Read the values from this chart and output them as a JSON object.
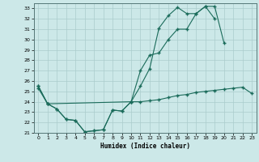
{
  "xlabel": "Humidex (Indice chaleur)",
  "bg_color": "#cce8e8",
  "grid_color": "#aacccc",
  "line_color": "#1a6b5a",
  "xlim": [
    -0.5,
    23.5
  ],
  "ylim": [
    21,
    33.5
  ],
  "xticks": [
    0,
    1,
    2,
    3,
    4,
    5,
    6,
    7,
    8,
    9,
    10,
    11,
    12,
    13,
    14,
    15,
    16,
    17,
    18,
    19,
    20,
    21,
    22,
    23
  ],
  "yticks": [
    21,
    22,
    23,
    24,
    25,
    26,
    27,
    28,
    29,
    30,
    31,
    32,
    33
  ],
  "line1_y": [
    25.5,
    23.8,
    23.3,
    22.3,
    22.2,
    21.1,
    21.2,
    21.3,
    23.2,
    23.1,
    24.0,
    25.5,
    27.2,
    31.1,
    32.3,
    33.1,
    32.5,
    32.5,
    33.2,
    33.2,
    29.7,
    null,
    null,
    null
  ],
  "line2_y": [
    25.5,
    23.8,
    23.3,
    22.3,
    22.2,
    21.1,
    21.2,
    21.3,
    23.2,
    23.1,
    24.0,
    27.0,
    28.5,
    28.7,
    30.0,
    31.0,
    31.0,
    32.5,
    33.2,
    32.0,
    null,
    null,
    null,
    null
  ],
  "line3_y": [
    25.3,
    23.8,
    null,
    null,
    null,
    null,
    null,
    null,
    null,
    null,
    24.0,
    24.0,
    24.1,
    24.2,
    24.4,
    24.6,
    24.7,
    24.9,
    25.0,
    25.1,
    25.2,
    25.3,
    25.4,
    24.8
  ]
}
